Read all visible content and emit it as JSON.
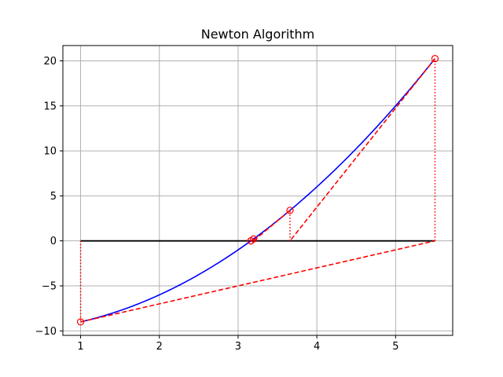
{
  "chart_data": {
    "type": "line",
    "title": "Newton Algorithm",
    "xlabel": "",
    "ylabel": "",
    "xlim": [
      0.775,
      5.725
    ],
    "ylim": [
      -10.5,
      21.7
    ],
    "x_ticks": [
      1,
      2,
      3,
      4,
      5
    ],
    "y_ticks": [
      -10,
      -5,
      0,
      5,
      10,
      15,
      20
    ],
    "grid": true,
    "curve": {
      "function": "x^2 - 10",
      "x_range": [
        1,
        5.5
      ],
      "color": "#0000ff"
    },
    "zero_line": {
      "x_range": [
        1,
        5.5
      ],
      "y": 0,
      "color": "#000000"
    },
    "iterates": [
      {
        "x": 1.0,
        "y": -9.0
      },
      {
        "x": 5.5,
        "y": 20.25
      },
      {
        "x": 3.659,
        "y": 3.389
      },
      {
        "x": 3.196,
        "y": 0.214
      },
      {
        "x": 3.163,
        "y": 0.001
      },
      {
        "x": 3.162,
        "y": 0.0
      }
    ],
    "tangent_segments": [
      {
        "from": [
          1.0,
          -9.0
        ],
        "to": [
          5.5,
          0
        ]
      },
      {
        "from": [
          5.5,
          20.25
        ],
        "to": [
          3.659,
          0
        ]
      },
      {
        "from": [
          3.659,
          3.389
        ],
        "to": [
          3.196,
          0
        ]
      },
      {
        "from": [
          3.196,
          0.214
        ],
        "to": [
          3.163,
          0
        ]
      },
      {
        "from": [
          3.163,
          0.001
        ],
        "to": [
          3.162,
          0
        ]
      }
    ],
    "vertical_segments": [
      {
        "x": 1.0,
        "y_from": 0,
        "y_to": -9.0
      },
      {
        "x": 5.5,
        "y_from": 0,
        "y_to": 20.25
      },
      {
        "x": 3.659,
        "y_from": 0,
        "y_to": 3.389
      },
      {
        "x": 3.196,
        "y_from": 0,
        "y_to": 0.214
      },
      {
        "x": 3.163,
        "y_from": 0,
        "y_to": 0.001
      }
    ],
    "colors": {
      "newton": "#ff0000",
      "grid": "#b0b0b0",
      "axes": "#000000"
    }
  }
}
